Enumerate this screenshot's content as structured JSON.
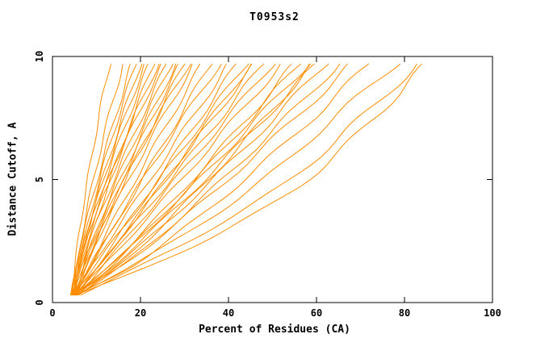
{
  "chart_data": {
    "type": "line",
    "title": "T0953s2",
    "xlabel": "Percent of Residues (CA)",
    "ylabel": "Distance Cutoff, A",
    "xlim": [
      0,
      100
    ],
    "ylim": [
      0,
      10
    ],
    "x_ticks": [
      0,
      20,
      40,
      60,
      80,
      100
    ],
    "y_ticks": [
      0,
      5,
      10
    ],
    "grid": "off",
    "legend": "none",
    "line_color": "#ff8c00",
    "axis_color": "#000000",
    "y_values": [
      0.3,
      1.5,
      3,
      5,
      7.5,
      9.7
    ],
    "series": [
      [
        4.5,
        5.1,
        6.2,
        8.0,
        10.5,
        13
      ],
      [
        4.8,
        5.6,
        7.0,
        9.3,
        12.7,
        16
      ],
      [
        4.2,
        5.4,
        7.3,
        10.2,
        14.2,
        18
      ],
      [
        5.0,
        6.0,
        7.8,
        10.7,
        14.9,
        19
      ],
      [
        4.6,
        5.9,
        8.0,
        11.3,
        15.8,
        20
      ],
      [
        5.2,
        6.3,
        8.3,
        11.6,
        16.4,
        21
      ],
      [
        4.4,
        5.9,
        8.3,
        12.1,
        17.2,
        22
      ],
      [
        5.5,
        7.0,
        9.4,
        13.1,
        18.2,
        23
      ],
      [
        4.0,
        5.7,
        8.5,
        12.7,
        18.5,
        24
      ],
      [
        5.0,
        6.4,
        8.9,
        13.1,
        19.1,
        25
      ],
      [
        4.7,
        6.5,
        9.5,
        14.0,
        20.2,
        26
      ],
      [
        5.3,
        7.1,
        10.2,
        14.7,
        21.1,
        27
      ],
      [
        4.3,
        6.8,
        10.3,
        15.4,
        22.0,
        28
      ],
      [
        5.8,
        7.8,
        11.0,
        15.9,
        22.6,
        29
      ],
      [
        4.9,
        7.5,
        11.3,
        16.6,
        23.6,
        30
      ],
      [
        5.1,
        7.3,
        10.9,
        16.4,
        23.9,
        31
      ],
      [
        4.5,
        7.4,
        11.5,
        17.3,
        25.0,
        32
      ],
      [
        5.6,
        8.6,
        12.8,
        18.9,
        26.8,
        34
      ],
      [
        4.8,
        8.8,
        13.8,
        20.4,
        28.7,
        36
      ],
      [
        5.2,
        8.6,
        13.5,
        20.5,
        29.7,
        38
      ],
      [
        4.4,
        9.0,
        14.6,
        22.2,
        31.7,
        40
      ],
      [
        5.7,
        10.3,
        16.1,
        23.9,
        33.5,
        42
      ],
      [
        4.6,
        9.6,
        15.9,
        24.3,
        34.8,
        44
      ],
      [
        5.0,
        10.7,
        17.2,
        25.7,
        36.0,
        45
      ],
      [
        5.4,
        10.6,
        17.1,
        25.7,
        36.5,
        46
      ],
      [
        4.2,
        10.4,
        17.6,
        26.9,
        38.2,
        48
      ],
      [
        5.8,
        11.5,
        18.5,
        27.9,
        39.7,
        50
      ],
      [
        4.9,
        11.6,
        19.3,
        29.3,
        41.5,
        52
      ],
      [
        5.1,
        12.9,
        21.3,
        31.8,
        44.4,
        55
      ],
      [
        5.5,
        13.4,
        21.9,
        32.6,
        45.2,
        56
      ],
      [
        4.7,
        13.1,
        22.0,
        33.3,
        46.6,
        58
      ],
      [
        5.9,
        15.1,
        24.3,
        35.4,
        48.3,
        59
      ],
      [
        5.2,
        13.8,
        23.0,
        34.6,
        48.3,
        60
      ],
      [
        4.4,
        14.4,
        24.3,
        36.4,
        50.4,
        62
      ],
      [
        5.6,
        15.9,
        26.2,
        38.6,
        53.0,
        65
      ],
      [
        4.8,
        15.8,
        26.7,
        39.9,
        55.2,
        68
      ],
      [
        5.3,
        18.2,
        29.8,
        43.6,
        59.2,
        72
      ],
      [
        5.0,
        18.0,
        32.0,
        48.0,
        64.0,
        78
      ],
      [
        6.2,
        20.0,
        36.0,
        54.0,
        70.0,
        83
      ],
      [
        5.5,
        22.0,
        40.0,
        58.0,
        73.0,
        85
      ]
    ]
  }
}
